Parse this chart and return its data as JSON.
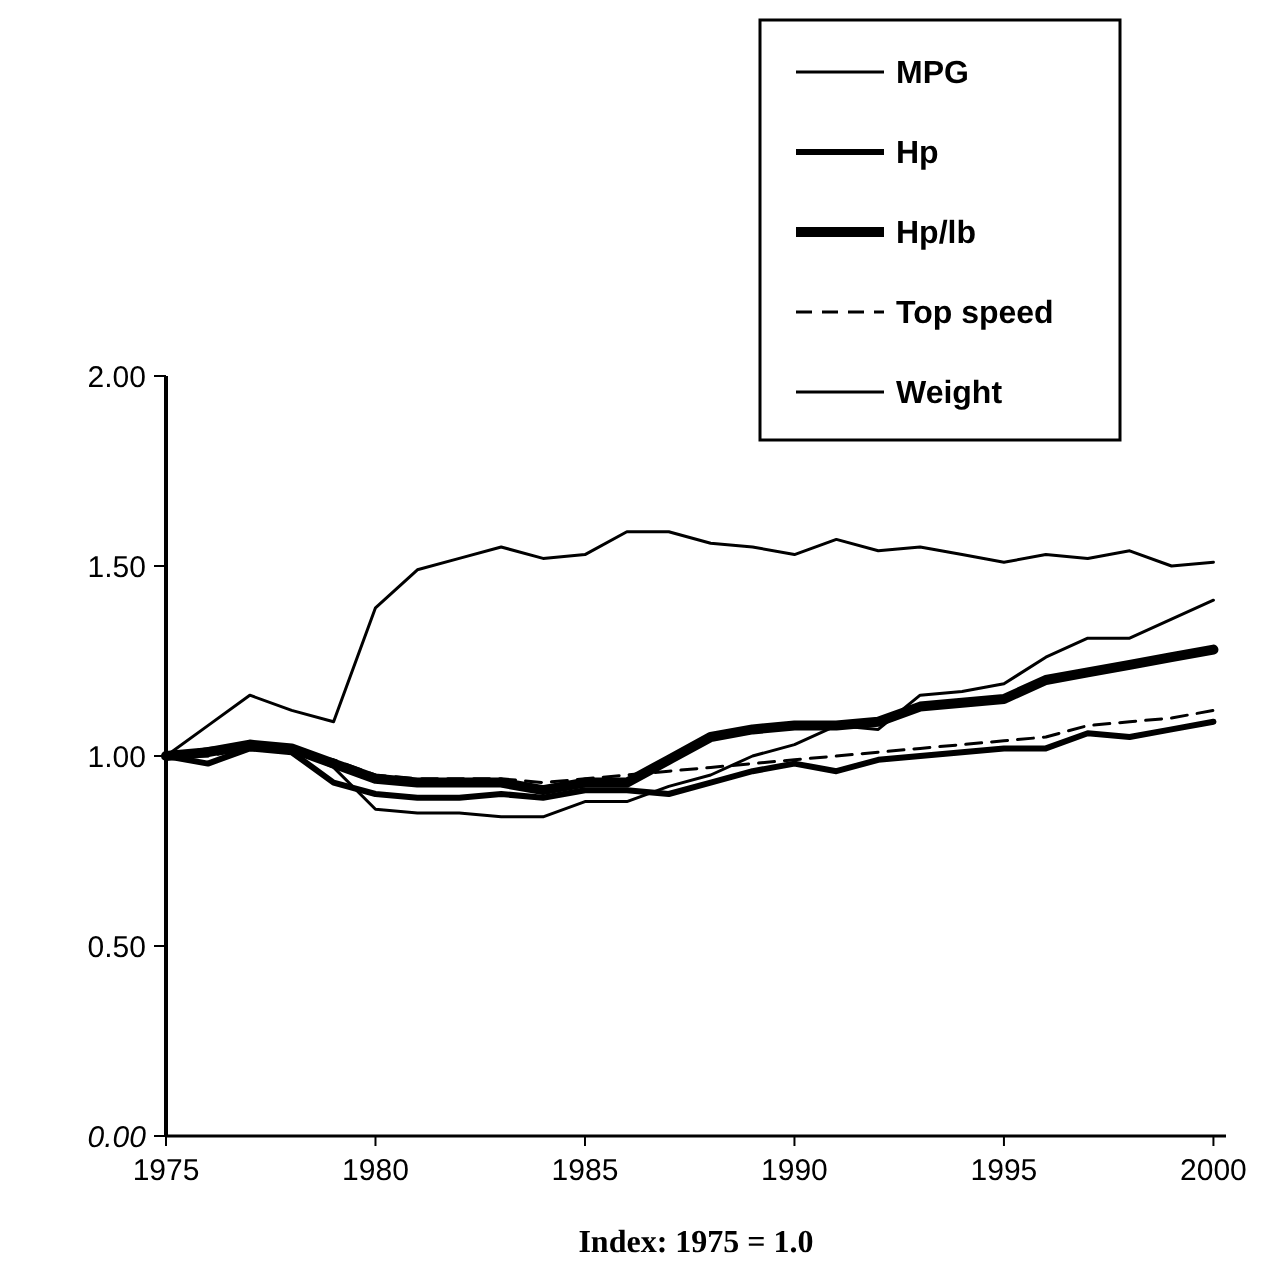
{
  "chart_data": {
    "type": "line",
    "xlabel": "Index: 1975 = 1.0",
    "x": [
      1975,
      1976,
      1977,
      1978,
      1979,
      1980,
      1981,
      1982,
      1983,
      1984,
      1985,
      1986,
      1987,
      1988,
      1989,
      1990,
      1991,
      1992,
      1993,
      1994,
      1995,
      1996,
      1997,
      1998,
      1999,
      2000
    ],
    "xlim": [
      1975,
      2000.3
    ],
    "xticks": [
      1975,
      1980,
      1985,
      1990,
      1995,
      2000
    ],
    "ylim": [
      0,
      2
    ],
    "yticks": [
      {
        "value": 0,
        "label": "0.00"
      },
      {
        "value": 0.5,
        "label": "0.50"
      },
      {
        "value": 1,
        "label": "1.00"
      },
      {
        "value": 1.5,
        "label": "1.50"
      },
      {
        "value": 2,
        "label": "2.00"
      }
    ],
    "grid": false,
    "legend": "top right",
    "marker": "none",
    "series": [
      {
        "name": "MPG",
        "color": "#000000",
        "values": [
          1.0,
          1.08,
          1.16,
          1.12,
          1.09,
          1.39,
          1.49,
          1.52,
          1.55,
          1.52,
          1.53,
          1.59,
          1.59,
          1.56,
          1.55,
          1.53,
          1.57,
          1.54,
          1.55,
          1.53,
          1.51,
          1.53,
          1.52,
          1.54,
          1.5,
          1.51
        ]
      },
      {
        "name": "Hp",
        "color": "#000000",
        "values": [
          1.0,
          0.98,
          1.02,
          1.01,
          0.93,
          0.9,
          0.89,
          0.89,
          0.9,
          0.89,
          0.91,
          0.91,
          0.9,
          0.93,
          0.96,
          0.98,
          0.96,
          0.99,
          1.0,
          1.01,
          1.02,
          1.02,
          1.06,
          1.05,
          1.07,
          1.09
        ]
      },
      {
        "name": "Hp/lb",
        "color": "#000000",
        "values": [
          1.0,
          1.01,
          1.03,
          1.02,
          0.98,
          0.94,
          0.93,
          0.93,
          0.93,
          0.91,
          0.93,
          0.93,
          0.99,
          1.05,
          1.07,
          1.08,
          1.08,
          1.09,
          1.13,
          1.14,
          1.15,
          1.2,
          1.22,
          1.24,
          1.26,
          1.28
        ]
      },
      {
        "name": "Top speed",
        "color": "#000000",
        "line_style": "dashed",
        "values": [
          1.0,
          1.0,
          1.02,
          1.01,
          0.99,
          0.95,
          0.94,
          0.94,
          0.94,
          0.93,
          0.94,
          0.95,
          0.96,
          0.97,
          0.98,
          0.99,
          1.0,
          1.01,
          1.02,
          1.03,
          1.04,
          1.05,
          1.08,
          1.09,
          1.1,
          1.12
        ]
      },
      {
        "name": "Weight",
        "color": "#000000",
        "values": [
          1.0,
          1.02,
          1.03,
          1.02,
          0.97,
          0.86,
          0.85,
          0.85,
          0.84,
          0.84,
          0.88,
          0.88,
          0.92,
          0.95,
          1.0,
          1.03,
          1.08,
          1.07,
          1.16,
          1.17,
          1.19,
          1.26,
          1.31,
          1.31,
          1.36,
          1.41
        ]
      }
    ]
  }
}
